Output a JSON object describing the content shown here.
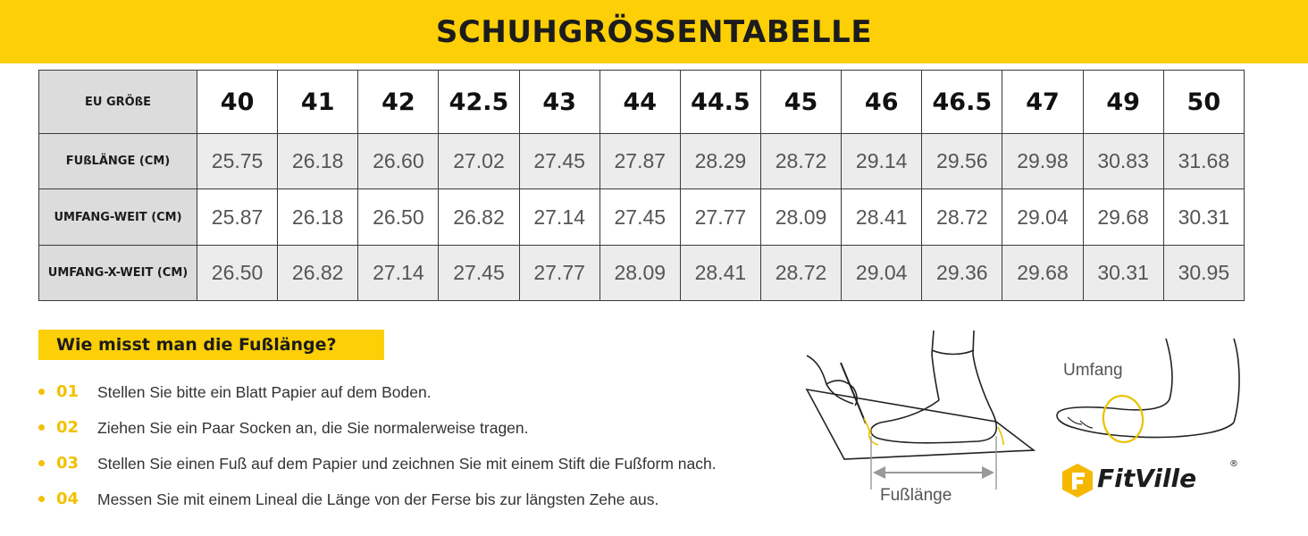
{
  "banner": {
    "title": "SCHUHGRÖSSENTABELLE"
  },
  "table": {
    "header_label": "EU GRÖßE",
    "sizes": [
      "40",
      "41",
      "42",
      "42.5",
      "43",
      "44",
      "44.5",
      "45",
      "46",
      "46.5",
      "47",
      "49",
      "50"
    ],
    "rows": [
      {
        "label": "FUßLÄNGE (CM)",
        "values": [
          "25.75",
          "26.18",
          "26.60",
          "27.02",
          "27.45",
          "27.87",
          "28.29",
          "28.72",
          "29.14",
          "29.56",
          "29.98",
          "30.83",
          "31.68"
        ]
      },
      {
        "label": "UMFANG-WEIT (CM)",
        "values": [
          "25.87",
          "26.18",
          "26.50",
          "26.82",
          "27.14",
          "27.45",
          "27.77",
          "28.09",
          "28.41",
          "28.72",
          "29.04",
          "29.68",
          "30.31"
        ]
      },
      {
        "label": "UMFANG-X-WEIT (CM)",
        "values": [
          "26.50",
          "26.82",
          "27.14",
          "27.45",
          "27.77",
          "28.09",
          "28.41",
          "28.72",
          "29.04",
          "29.36",
          "29.68",
          "30.31",
          "30.95"
        ]
      }
    ]
  },
  "howto": {
    "title": "Wie misst man die Fußlänge?",
    "steps": [
      {
        "num": "01",
        "text": "Stellen Sie bitte ein Blatt Papier auf dem Boden."
      },
      {
        "num": "02",
        "text": "Ziehen Sie ein Paar Socken an, die Sie normalerweise tragen."
      },
      {
        "num": "03",
        "text": "Stellen Sie einen Fuß auf dem Papier und zeichnen Sie mit einem Stift die Fußform nach."
      },
      {
        "num": "04",
        "text": "Messen Sie mit einem Lineal die Länge von der Ferse bis zur längsten Zehe aus."
      }
    ]
  },
  "illustration": {
    "measure_label": "Fußlänge",
    "circumference_label": "Umfang"
  },
  "brand": {
    "name": "FitVille",
    "registered": "®"
  },
  "colors": {
    "accent_yellow": "#fccf06",
    "header_gray": "#dcdcdc",
    "row_gray": "#ececec"
  },
  "icons": [
    "foot-measurement-illustration-icon",
    "foot-circumference-illustration-icon",
    "fitville-logo-icon"
  ]
}
